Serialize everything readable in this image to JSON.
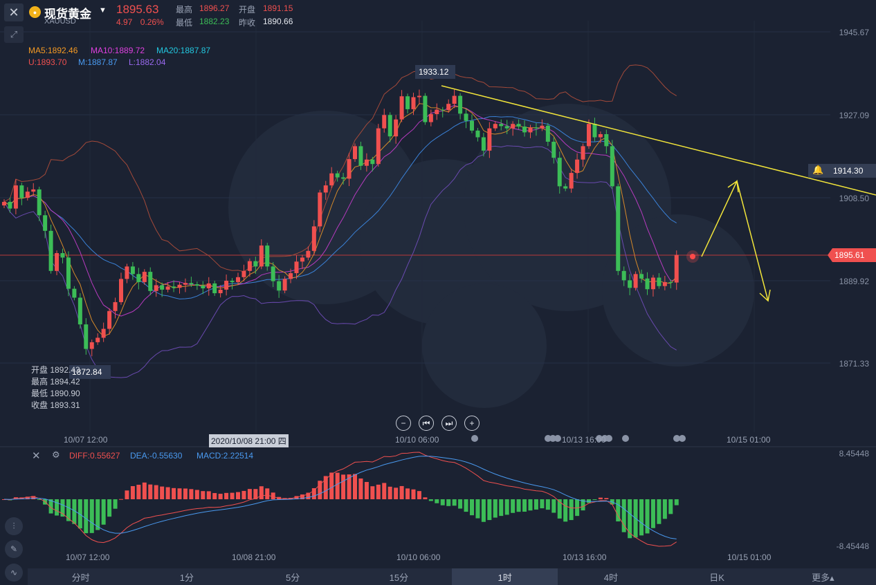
{
  "header": {
    "close_icon": "close-icon",
    "expand_icon": "expand-arrows-icon",
    "coin_icon": "gold-coin-icon",
    "title": "现货黄金",
    "symbol": "XAUUSD",
    "price": "1895.63",
    "change": "4.97",
    "change_pct": "0.26%",
    "high_label": "最高",
    "high": "1896.27",
    "open_label": "开盘",
    "open": "1891.15",
    "low_label": "最低",
    "low": "1882.23",
    "prev_label": "昨收",
    "prev": "1890.66"
  },
  "indicators": {
    "ma5": "MA5:1892.46",
    "ma10": "MA10:1889.72",
    "ma20": "MA20:1887.87",
    "u": "U:1893.70",
    "m": "M:1887.87",
    "l": "L:1882.04"
  },
  "ohlc_panel": {
    "open": "开盘 1892.43",
    "high": "最高 1894.42",
    "low": "最低 1890.90",
    "close": "收盘 1893.31"
  },
  "annotations": {
    "peak": "1933.12",
    "low": "1872.84",
    "alert_price": "1914.30",
    "current_price": "1895.61",
    "crosshair_time": "2020/10/08 21:00 四"
  },
  "y_axis": [
    "1945.67",
    "1927.09",
    "1908.50",
    "1889.92",
    "1871.33"
  ],
  "x_axis": [
    "10/07 12:00",
    "10/10 06:00",
    "10/13 16:00",
    "10/15 01:00"
  ],
  "macd": {
    "diff": "DIFF:0.55627",
    "dea": "DEA:-0.55630",
    "macd": "MACD:2.22514",
    "top": "8.45448",
    "bottom": "-8.45448",
    "x_axis": [
      "10/07 12:00",
      "10/08 21:00",
      "10/10 06:00",
      "10/13 16:00",
      "10/15 01:00"
    ]
  },
  "nav_buttons": [
    "−",
    "⏮",
    "⏭",
    "+"
  ],
  "tabs": [
    "分时",
    "1分",
    "5分",
    "15分",
    "1时",
    "4时",
    "日K",
    "更多▴"
  ],
  "active_tab": "1时",
  "colors": {
    "up": "#f0504f",
    "down": "#3cbd57",
    "ma5": "#f59a23",
    "ma10": "#e040e0",
    "ma20": "#22c8e0",
    "trend": "#f2e53a"
  },
  "chart_data": {
    "type": "candlestick",
    "closes": [
      1907.5,
      1906,
      1911.2,
      1908.4,
      1909.8,
      1910.3,
      1904.5,
      1901,
      1892,
      1896,
      1895,
      1888,
      1886,
      1880,
      1874.5,
      1876,
      1877,
      1879,
      1883,
      1885,
      1890.2,
      1893,
      1891.3,
      1889.5,
      1891.8,
      1887.5,
      1888.8,
      1887.8,
      1888.5,
      1888.2,
      1888.9,
      1889.3,
      1889,
      1888.7,
      1888.1,
      1889.2,
      1887,
      1887.8,
      1889.8,
      1889.5,
      1890.6,
      1892,
      1894.2,
      1893,
      1897.7,
      1893,
      1889.7,
      1887.6,
      1890.2,
      1891.5,
      1894.1,
      1895,
      1896.5,
      1902,
      1909.6,
      1911.2,
      1913.9,
      1913,
      1912.7,
      1917.1,
      1920,
      1915.6,
      1917,
      1916,
      1924,
      1927,
      1922.2,
      1926,
      1931.2,
      1928.3,
      1931,
      1931.3,
      1925.4,
      1927.2,
      1928.2,
      1928.1,
      1929.5,
      1931.3,
      1927.3,
      1925.7,
      1923.5,
      1922,
      1919,
      1924,
      1925,
      1924.5,
      1924,
      1925,
      1924.4,
      1923.1,
      1924.2,
      1924,
      1924.6,
      1921,
      1917.4,
      1911,
      1910.5,
      1914,
      1917,
      1920,
      1925,
      1922,
      1922.7,
      1920,
      1911,
      1892,
      1889.9,
      1888.2,
      1891.3,
      1890.3,
      1887.9,
      1890.5,
      1888.6,
      1889.5,
      1889.4,
      1895.6
    ]
  }
}
